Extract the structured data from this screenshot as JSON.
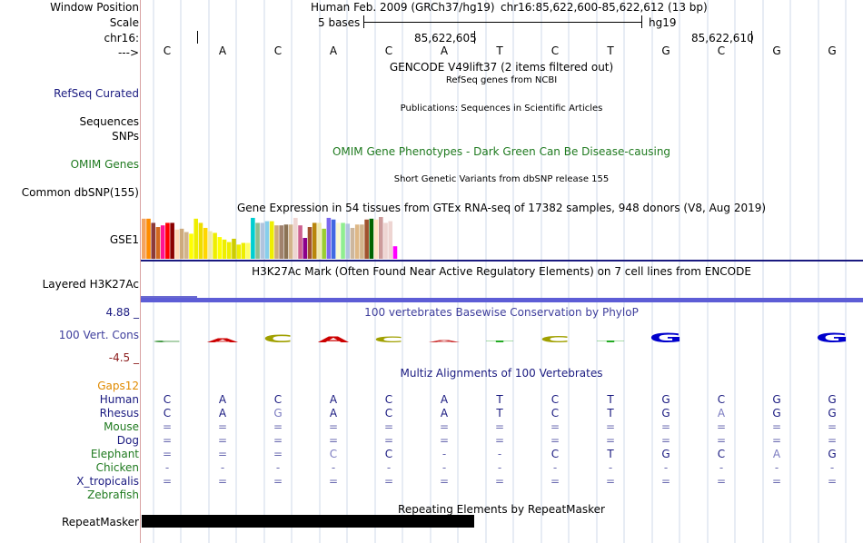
{
  "header": {
    "window_position_label": "Window Position",
    "assembly": "Human Feb. 2009 (GRCh37/hg19)",
    "position": "chr16:85,622,600-85,622,612 (13 bp)",
    "scale_label": "Scale",
    "scale_text": "5 bases",
    "scale_db": "hg19",
    "chrom_label": "chr16:",
    "coord_1": "85,622,605",
    "coord_2": "85,622,610",
    "strand_label": "--->",
    "bases": [
      "C",
      "A",
      "C",
      "A",
      "C",
      "A",
      "T",
      "C",
      "T",
      "G",
      "C",
      "G",
      "G"
    ]
  },
  "tracks": {
    "gencode_title": "GENCODE V49lift37 (2 items filtered out)",
    "refseq_sub": "RefSeq genes from NCBI",
    "refseq_label": "RefSeq Curated",
    "publications_sub": "Publications: Sequences in Scientific Articles",
    "sequences_label": "Sequences",
    "snps_label": "SNPs",
    "omim_title": "OMIM Gene Phenotypes - Dark Green Can Be Disease-causing",
    "omim_label": "OMIM Genes",
    "dbsnp_sub": "Short Genetic Variants from dbSNP release 155",
    "dbsnp_label": "Common dbSNP(155)",
    "gtex_title": "Gene Expression in 54 tissues from GTEx RNA-seq of 17382 samples, 948 donors (V8, Aug 2019)",
    "gtex_label": "GSE1",
    "h3k27ac_title": "H3K27Ac Mark (Often Found Near Active Regulatory Elements) on 7 cell lines from ENCODE",
    "h3k27ac_label": "Layered H3K27Ac",
    "cons_max": "4.88 _",
    "cons_min": "-4.5 _",
    "cons_title": "100 vertebrates Basewise Conservation by PhyloP",
    "cons_label": "100 Vert. Cons",
    "multiz_title": "Multiz Alignments of 100 Vertebrates",
    "gaps_label": "Gaps12",
    "repeat_title": "Repeating Elements by RepeatMasker",
    "repeat_label": "RepeatMasker"
  },
  "gtex_values": [
    0.96,
    0.96,
    0.86,
    0.76,
    0.8,
    0.86,
    0.86,
    0.7,
    0.72,
    0.64,
    0.6,
    0.96,
    0.86,
    0.74,
    0.66,
    0.62,
    0.52,
    0.46,
    0.4,
    0.48,
    0.34,
    0.38,
    0.38,
    0.98,
    0.86,
    0.86,
    0.9,
    0.9,
    0.8,
    0.8,
    0.82,
    0.82,
    0.98,
    0.8,
    0.5,
    0.76,
    0.86,
    0.86,
    0.72,
    0.98,
    0.94,
    0.86,
    0.86,
    0.84,
    0.74,
    0.82,
    0.82,
    0.94,
    0.96,
    0.94,
    1.0,
    0.86,
    0.9,
    0.3
  ],
  "gtex_colors": [
    "#f4a460",
    "#ff8c00",
    "#8b3a3a",
    "#d2691e",
    "#ff1493",
    "#ff0000",
    "#8b0000",
    "#ffdab9",
    "#cdaa7d",
    "#d2b48c",
    "#ffff00",
    "#eeee00",
    "#eedd00",
    "#ffd700",
    "#eee8aa",
    "#eeee00",
    "#ffff00",
    "#eeee00",
    "#eeee00",
    "#cdcd00",
    "#eeee00",
    "#eeee00",
    "#ffff66",
    "#00ced1",
    "#8fbc8f",
    "#b0c4de",
    "#87ceeb",
    "#eeee00",
    "#cdaa7d",
    "#a0826d",
    "#8b7355",
    "#d2b48c",
    "#eed5d2",
    "#cd6090",
    "#8b008b",
    "#a0522d",
    "#b8860b",
    "#eee8aa",
    "#9acd32",
    "#7b68ee",
    "#4169e1",
    "#fafad2",
    "#90ee90",
    "#b0c4de",
    "#cdb79e",
    "#deb887",
    "#d2b48c",
    "#a0522d",
    "#006400",
    "#ffe4c4",
    "#cd9b9b",
    "#eed5d2",
    "#eed5d2",
    "#ff00ff"
  ],
  "cons_letters": [
    {
      "base": "C",
      "color": "#2b8c2b",
      "h": 0.08
    },
    {
      "base": "A",
      "color": "#cc0000",
      "h": 0.22
    },
    {
      "base": "C",
      "color": "#a0a000",
      "h": 0.4
    },
    {
      "base": "A",
      "color": "#cc0000",
      "h": 0.32
    },
    {
      "base": "C",
      "color": "#a0a000",
      "h": 0.3
    },
    {
      "base": "A",
      "color": "#cc3333",
      "h": 0.12
    },
    {
      "base": "T",
      "color": "#22aa22",
      "h": 0.1
    },
    {
      "base": "C",
      "color": "#a0a000",
      "h": 0.36
    },
    {
      "base": "T",
      "color": "#22aa22",
      "h": 0.1
    },
    {
      "base": "G",
      "color": "#0000cc",
      "h": 0.5
    },
    {
      "base": "C",
      "color": "#a0a000",
      "h": 0.0
    },
    {
      "base": "G",
      "color": "#0000cc",
      "h": 0.0
    },
    {
      "base": "G",
      "color": "#0000cc",
      "h": 0.5
    }
  ],
  "multiz": [
    {
      "species": "Human",
      "seq": [
        "C",
        "A",
        "C",
        "A",
        "C",
        "A",
        "T",
        "C",
        "T",
        "G",
        "C",
        "G",
        "G"
      ]
    },
    {
      "species": "Rhesus",
      "seq": [
        "C",
        "A",
        "G",
        "A",
        "C",
        "A",
        "T",
        "C",
        "T",
        "G",
        "A",
        "G",
        "G"
      ]
    },
    {
      "species": "Mouse",
      "seq": [
        "=",
        "=",
        "=",
        "=",
        "=",
        "=",
        "=",
        "=",
        "=",
        "=",
        "=",
        "=",
        "="
      ]
    },
    {
      "species": "Dog",
      "seq": [
        "=",
        "=",
        "=",
        "=",
        "=",
        "=",
        "=",
        "=",
        "=",
        "=",
        "=",
        "=",
        "="
      ]
    },
    {
      "species": "Elephant",
      "seq": [
        "=",
        "=",
        "=",
        "C",
        "C",
        "-",
        "-",
        "C",
        "T",
        "G",
        "C",
        "A",
        "G"
      ]
    },
    {
      "species": "Chicken",
      "seq": [
        "-",
        "-",
        "-",
        "-",
        "-",
        "-",
        "-",
        "-",
        "-",
        "-",
        "-",
        "-",
        "-"
      ]
    },
    {
      "species": "X_tropicalis",
      "seq": [
        "=",
        "=",
        "=",
        "=",
        "=",
        "=",
        "=",
        "=",
        "=",
        "=",
        "=",
        "=",
        "="
      ]
    },
    {
      "species": "Zebrafish",
      "seq": [
        "",
        "",
        "",
        "",
        "",
        "",
        "",
        "",
        "",
        "",
        "",
        "",
        ""
      ]
    }
  ]
}
